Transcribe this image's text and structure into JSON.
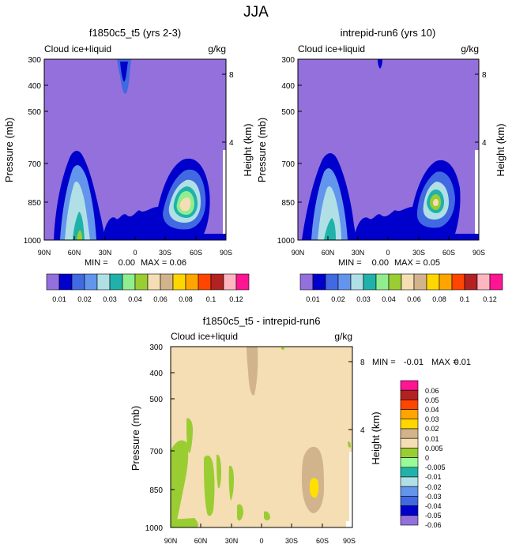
{
  "figure": {
    "title": "JJA",
    "colors": {
      "mean_fill": "#9370DB",
      "diff_fill": "#F5DEB3",
      "diff_pos": "#D2B48C",
      "diff_neg": "#9ACD32",
      "diff_peak": "#FFE000"
    }
  },
  "chart_data": [
    {
      "type": "contour",
      "title": "f1850c5_t5 (yrs 2-3)",
      "left_label": "Cloud ice+liquid",
      "right_label": "g/kg",
      "ylabel": "Pressure (mb)",
      "y2label": "Height (km)",
      "x_ticks": [
        "90N",
        "60N",
        "30N",
        "0",
        "30S",
        "60S",
        "90S"
      ],
      "y_ticks": [
        "300",
        "400",
        "500",
        "700",
        "850",
        "1000"
      ],
      "y2_ticks": [
        "8",
        "4"
      ],
      "min_label": "MIN =",
      "min_value": "0.00",
      "max_label": "MAX =",
      "max_value": "0.06"
    },
    {
      "type": "contour",
      "title": "intrepid-run6 (yrs 10)",
      "left_label": "Cloud ice+liquid",
      "right_label": "g/kg",
      "ylabel": "Pressure (mb)",
      "y2label": "Height (km)",
      "x_ticks": [
        "90N",
        "60N",
        "30N",
        "0",
        "30S",
        "60S",
        "90S"
      ],
      "y_ticks": [
        "300",
        "400",
        "500",
        "700",
        "850",
        "1000"
      ],
      "y2_ticks": [
        "8",
        "4"
      ],
      "min_label": "MIN =",
      "min_value": "0.00",
      "max_label": "MAX =",
      "max_value": "0.05"
    },
    {
      "type": "contour",
      "title": "f1850c5_t5 - intrepid-run6",
      "left_label": "Cloud ice+liquid",
      "right_label": "g/kg",
      "ylabel": "Pressure (mb)",
      "y2label": "Height (km)",
      "x_ticks": [
        "90N",
        "60N",
        "30N",
        "0",
        "30S",
        "60S",
        "90S"
      ],
      "y_ticks": [
        "300",
        "400",
        "500",
        "700",
        "850",
        "1000"
      ],
      "y2_ticks": [
        "8",
        "4"
      ],
      "min_label": "MIN =",
      "min_value": "-0.01",
      "max_label": "MAX =",
      "max_value": "0.01"
    }
  ],
  "mean_colorbar": {
    "colors": [
      "#9370DB",
      "#0000CD",
      "#4169E1",
      "#6495ED",
      "#B0E0E6",
      "#20B2AA",
      "#90EE90",
      "#9ACD32",
      "#F5DEB3",
      "#D2B48C",
      "#FFD700",
      "#FFA500",
      "#FF4500",
      "#B22222",
      "#FFB6C1",
      "#FF1493"
    ],
    "labels": [
      "0.01",
      "0.02",
      "0.03",
      "0.04",
      "0.06",
      "0.08",
      "0.1",
      "0.12"
    ]
  },
  "diff_colorbar": {
    "colors": [
      "#FF1493",
      "#B22222",
      "#FF4500",
      "#FFA500",
      "#FFD700",
      "#D2B48C",
      "#F5DEB3",
      "#9ACD32",
      "#98FB98",
      "#20B2AA",
      "#B0E0E6",
      "#6495ED",
      "#4169E1",
      "#0000CD",
      "#9370DB"
    ],
    "labels": [
      "0.06",
      "0.05",
      "0.04",
      "0.03",
      "0.02",
      "0.01",
      "0.005",
      "0",
      "-0.005",
      "-0.01",
      "-0.02",
      "-0.03",
      "-0.04",
      "-0.05",
      "-0.06"
    ]
  }
}
